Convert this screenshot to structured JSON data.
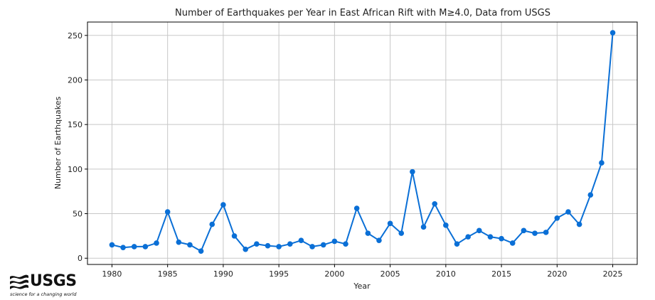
{
  "chart_data": {
    "type": "line",
    "title": "Number of Earthquakes per Year in East African Rift with M≥4.0, Data from USGS",
    "xlabel": "Year",
    "ylabel": "Number of Earthquakes",
    "xlim": [
      1977.8,
      2027.2
    ],
    "ylim": [
      -7,
      265
    ],
    "xticks": [
      1980,
      1985,
      1990,
      1995,
      2000,
      2005,
      2010,
      2015,
      2020,
      2025
    ],
    "yticks": [
      0,
      50,
      100,
      150,
      200,
      250
    ],
    "grid": true,
    "series": [
      {
        "color": "#0a6fd6",
        "x": [
          1980,
          1981,
          1982,
          1983,
          1984,
          1985,
          1986,
          1987,
          1988,
          1989,
          1990,
          1991,
          1992,
          1993,
          1994,
          1995,
          1996,
          1997,
          1998,
          1999,
          2000,
          2001,
          2002,
          2003,
          2004,
          2005,
          2006,
          2007,
          2008,
          2009,
          2010,
          2011,
          2012,
          2013,
          2014,
          2015,
          2016,
          2017,
          2018,
          2019,
          2020,
          2021,
          2022,
          2023,
          2024,
          2025
        ],
        "y": [
          15,
          12,
          13,
          13,
          17,
          52,
          18,
          15,
          8,
          38,
          60,
          25,
          10,
          16,
          14,
          13,
          16,
          20,
          13,
          15,
          19,
          16,
          56,
          28,
          20,
          39,
          28,
          97,
          35,
          61,
          37,
          16,
          24,
          31,
          24,
          22,
          17,
          31,
          28,
          29,
          45,
          52,
          38,
          71,
          107,
          253
        ]
      }
    ]
  },
  "logo": {
    "text": "USGS",
    "tagline": "science for a changing world"
  }
}
